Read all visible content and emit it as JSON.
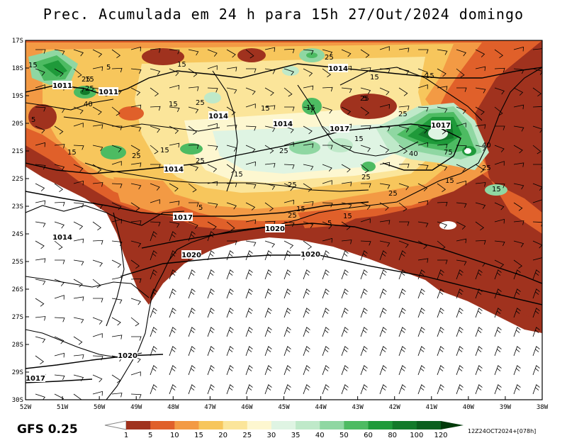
{
  "title": "Prec. Acumulada em 24 h para 15h 27/Out/2024 domingo",
  "model": "GFS 0.25",
  "run": "12Z24OCT2024+[078h]",
  "lat_labels": [
    "17S",
    "18S",
    "19S",
    "20S",
    "21S",
    "22S",
    "23S",
    "24S",
    "25S",
    "26S",
    "27S",
    "28S",
    "29S",
    "30S"
  ],
  "lon_labels": [
    "52W",
    "51W",
    "50W",
    "49W",
    "48W",
    "47W",
    "46W",
    "45W",
    "44W",
    "43W",
    "42W",
    "41W",
    "40W",
    "39W",
    "38W"
  ],
  "colorbar": {
    "labels": [
      "1",
      "5",
      "10",
      "15",
      "20",
      "25",
      "30",
      "35",
      "40",
      "50",
      "60",
      "80",
      "100",
      "120"
    ],
    "colors": [
      "#a0321e",
      "#e0602a",
      "#f39a44",
      "#f7c65c",
      "#fbe59a",
      "#fdf7d0",
      "#dff4e3",
      "#bfe9c9",
      "#8fd7a2",
      "#4dbb62",
      "#1f9a3a",
      "#127a2a",
      "#0a5f1e",
      "#064814",
      "#023a0a"
    ]
  },
  "isobars": [
    {
      "text": "1011"
    },
    {
      "text": "1011"
    },
    {
      "text": "1014"
    },
    {
      "text": "1014"
    },
    {
      "text": "1014"
    },
    {
      "text": "1017"
    },
    {
      "text": "1017"
    },
    {
      "text": "1017"
    },
    {
      "text": "1014"
    },
    {
      "text": "1014"
    },
    {
      "text": "1020"
    },
    {
      "text": "1020"
    },
    {
      "text": "1020"
    },
    {
      "text": "1020"
    },
    {
      "text": "1017"
    }
  ],
  "precip_labels": [
    "15",
    "25",
    "40",
    "5",
    "15",
    "15",
    "25",
    "15",
    "25",
    "15",
    "5",
    "25",
    "25",
    "15",
    "15",
    "25",
    "15",
    "25",
    "15",
    "25",
    "5",
    "15",
    "25",
    "40",
    "75",
    "40",
    "25",
    "15",
    "25",
    "25",
    "15",
    "25",
    "15",
    "5",
    "5",
    "15",
    "15",
    "25",
    "15"
  ]
}
